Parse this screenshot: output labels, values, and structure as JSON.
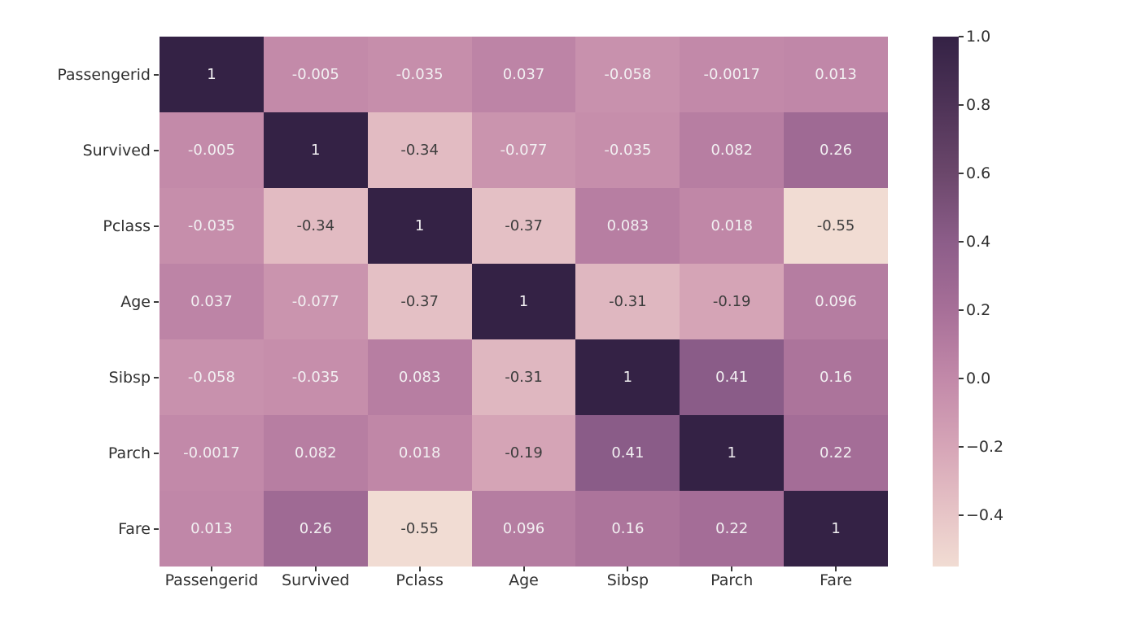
{
  "chart_data": {
    "type": "heatmap",
    "title": "",
    "categories": [
      "Passengerid",
      "Survived",
      "Pclass",
      "Age",
      "Sibsp",
      "Parch",
      "Fare"
    ],
    "matrix": [
      [
        "1",
        "-0.005",
        "-0.035",
        "0.037",
        "-0.058",
        "-0.0017",
        "0.013"
      ],
      [
        "-0.005",
        "1",
        "-0.34",
        "-0.077",
        "-0.035",
        "0.082",
        "0.26"
      ],
      [
        "-0.035",
        "-0.34",
        "1",
        "-0.37",
        "0.083",
        "0.018",
        "-0.55"
      ],
      [
        "0.037",
        "-0.077",
        "-0.37",
        "1",
        "-0.31",
        "-0.19",
        "0.096"
      ],
      [
        "-0.058",
        "-0.035",
        "0.083",
        "-0.31",
        "1",
        "0.41",
        "0.16"
      ],
      [
        "-0.0017",
        "0.082",
        "0.018",
        "-0.19",
        "0.41",
        "1",
        "0.22"
      ],
      [
        "0.013",
        "0.26",
        "-0.55",
        "0.096",
        "0.16",
        "0.22",
        "1"
      ]
    ],
    "vmin": -0.55,
    "vmax": 1.0,
    "colorbar": {
      "position": "right",
      "tick_labels": [
        "1.0",
        "0.8",
        "0.6",
        "0.4",
        "0.2",
        "0.0",
        "−0.2",
        "−0.4"
      ],
      "tick_values": [
        1.0,
        0.8,
        0.6,
        0.4,
        0.2,
        0.0,
        -0.2,
        -0.4
      ]
    },
    "colormap_stops": [
      {
        "value": 1.0,
        "color": "#342245"
      },
      {
        "value": 0.8,
        "color": "#4e3357"
      },
      {
        "value": 0.6,
        "color": "#6b476b"
      },
      {
        "value": 0.4,
        "color": "#8c5d89"
      },
      {
        "value": 0.2,
        "color": "#a76f98"
      },
      {
        "value": 0.0,
        "color": "#c289a9"
      },
      {
        "value": -0.2,
        "color": "#d6a5b7"
      },
      {
        "value": -0.4,
        "color": "#e7c5c7"
      },
      {
        "value": -0.55,
        "color": "#f1dcd3"
      }
    ],
    "colors": {
      "background": "#ffffff",
      "axis_text": "#303030",
      "annotation_light": "#f2f0f2",
      "annotation_dark": "#3d3d3d"
    },
    "grid": false
  }
}
